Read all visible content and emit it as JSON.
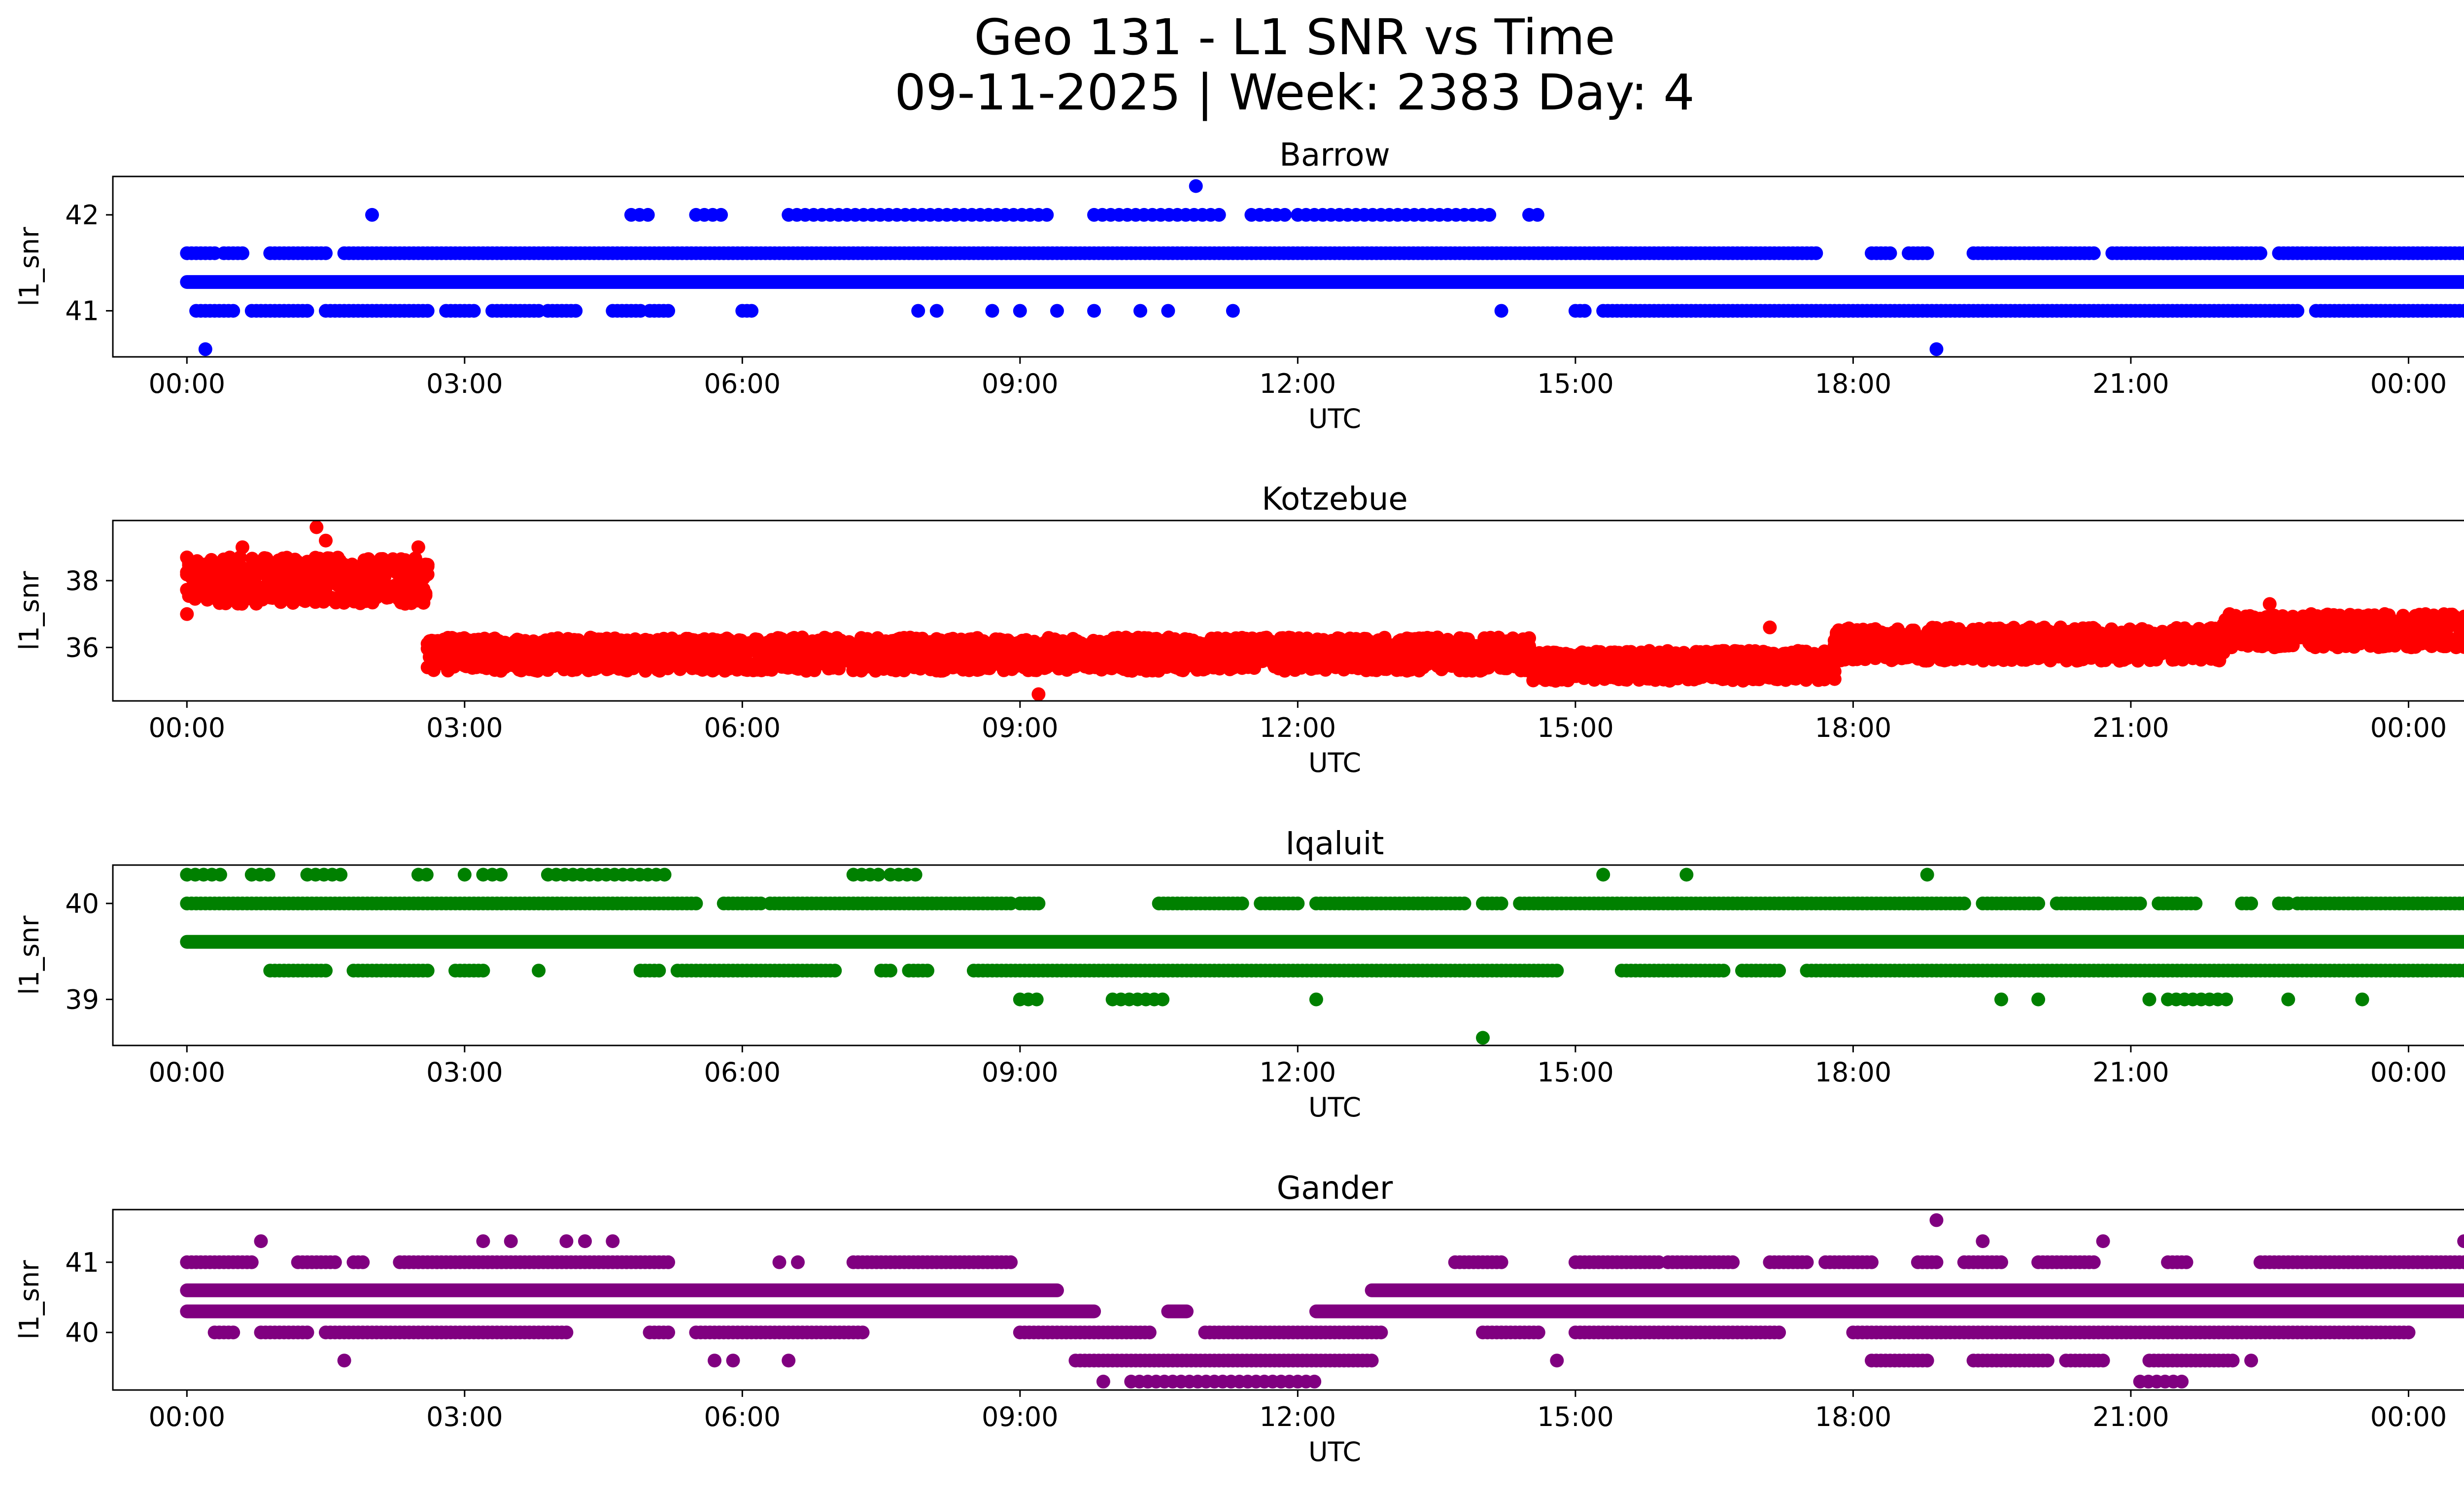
{
  "figure": {
    "title_line1": "Geo 131 - L1 SNR vs Time",
    "title_line2": "09-11-2025 | Week: 2383 Day: 4"
  },
  "chart_data": [
    {
      "type": "scatter",
      "title": "Barrow",
      "color": "#0000ff",
      "xlabel": "UTC",
      "ylabel": "l1_snr",
      "xlim_hours": [
        -0.8,
        25.6
      ],
      "ylim": [
        40.52,
        42.4
      ],
      "xtick_labels": [
        "00:00",
        "03:00",
        "06:00",
        "09:00",
        "12:00",
        "15:00",
        "18:00",
        "21:00",
        "00:00"
      ],
      "yticks": [
        41,
        42
      ],
      "ytick_labels": [
        "41",
        "42"
      ],
      "bands": [
        {
          "y": 41.3,
          "ranges": [
            [
              0,
              25
            ]
          ],
          "density": "continuous"
        },
        {
          "y": 41.6,
          "ranges": [
            [
              0,
              0.3
            ],
            [
              0.4,
              0.6
            ],
            [
              0.9,
              1.5
            ],
            [
              1.7,
              17.6
            ],
            [
              18.2,
              18.4
            ],
            [
              18.6,
              18.8
            ],
            [
              19.3,
              20.6
            ],
            [
              20.8,
              22.4
            ],
            [
              22.6,
              24.9
            ],
            [
              24.9,
              25
            ]
          ],
          "density": "dense"
        },
        {
          "y": 41.0,
          "ranges": [
            [
              0.1,
              0.5
            ],
            [
              0.7,
              1.3
            ],
            [
              1.5,
              2.6
            ],
            [
              2.8,
              3.1
            ],
            [
              3.3,
              3.8
            ],
            [
              3.9,
              4.2
            ],
            [
              4.6,
              4.9
            ],
            [
              5.0,
              5.2
            ],
            [
              6.0,
              6.1
            ],
            [
              15.0,
              15.1
            ],
            [
              15.3,
              22.8
            ],
            [
              23.0,
              25.0
            ]
          ],
          "density": "dense"
        },
        {
          "y": 42.0,
          "ranges": [
            [
              4.8,
              5.0
            ],
            [
              5.5,
              5.8
            ],
            [
              6.5,
              9.3
            ],
            [
              9.8,
              11.2
            ],
            [
              11.5,
              11.9
            ],
            [
              12.0,
              14.1
            ],
            [
              14.5,
              14.6
            ]
          ],
          "density": "sparse"
        }
      ],
      "isolated_points": [
        {
          "x": 0.2,
          "y": 40.6
        },
        {
          "x": 2.0,
          "y": 42.0
        },
        {
          "x": 10.9,
          "y": 42.3
        },
        {
          "x": 18.9,
          "y": 40.6
        },
        {
          "x": 8.1,
          "y": 41.0
        },
        {
          "x": 7.9,
          "y": 41.0
        },
        {
          "x": 8.7,
          "y": 41.0
        },
        {
          "x": 9.0,
          "y": 41.0
        },
        {
          "x": 9.4,
          "y": 41.0
        },
        {
          "x": 9.8,
          "y": 41.0
        },
        {
          "x": 10.3,
          "y": 41.0
        },
        {
          "x": 10.6,
          "y": 41.0
        },
        {
          "x": 11.3,
          "y": 41.0
        },
        {
          "x": 14.2,
          "y": 41.0
        }
      ]
    },
    {
      "type": "scatter",
      "title": "Kotzebue",
      "color": "#ff0000",
      "xlabel": "UTC",
      "ylabel": "l1_snr",
      "xlim_hours": [
        -0.8,
        25.6
      ],
      "ylim": [
        34.4,
        39.8
      ],
      "xtick_labels": [
        "00:00",
        "03:00",
        "06:00",
        "09:00",
        "12:00",
        "15:00",
        "18:00",
        "21:00",
        "00:00"
      ],
      "yticks": [
        36,
        38
      ],
      "ytick_labels": [
        "36",
        "38"
      ],
      "segments": [
        {
          "x0": 0.0,
          "x1": 2.6,
          "ymin": 37.3,
          "ymax": 38.7
        },
        {
          "x0": 2.6,
          "x1": 14.5,
          "ymin": 35.3,
          "ymax": 36.3
        },
        {
          "x0": 14.5,
          "x1": 17.8,
          "ymin": 35.0,
          "ymax": 35.9
        },
        {
          "x0": 17.8,
          "x1": 22.0,
          "ymin": 35.6,
          "ymax": 36.6
        },
        {
          "x0": 22.0,
          "x1": 25.0,
          "ymin": 36.0,
          "ymax": 37.0
        }
      ],
      "isolated_points": [
        {
          "x": 0.0,
          "y": 37.0
        },
        {
          "x": 0.6,
          "y": 39.0
        },
        {
          "x": 1.4,
          "y": 39.6
        },
        {
          "x": 1.5,
          "y": 39.2
        },
        {
          "x": 2.5,
          "y": 39.0
        },
        {
          "x": 9.2,
          "y": 34.6
        },
        {
          "x": 17.1,
          "y": 36.6
        },
        {
          "x": 22.5,
          "y": 37.3
        }
      ]
    },
    {
      "type": "scatter",
      "title": "Iqaluit",
      "color": "#008000",
      "xlabel": "UTC",
      "ylabel": "l1_snr",
      "xlim_hours": [
        -0.8,
        25.6
      ],
      "ylim": [
        38.52,
        40.4
      ],
      "xtick_labels": [
        "00:00",
        "03:00",
        "06:00",
        "09:00",
        "12:00",
        "15:00",
        "18:00",
        "21:00",
        "00:00"
      ],
      "yticks": [
        39,
        40
      ],
      "ytick_labels": [
        "39",
        "40"
      ],
      "bands": [
        {
          "y": 39.6,
          "ranges": [
            [
              0,
              25
            ]
          ],
          "density": "continuous"
        },
        {
          "y": 40.0,
          "ranges": [
            [
              0,
              5.5
            ],
            [
              5.8,
              6.2
            ],
            [
              6.3,
              8.9
            ],
            [
              9.0,
              9.2
            ],
            [
              10.5,
              11.4
            ],
            [
              11.6,
              12.0
            ],
            [
              12.2,
              13.8
            ],
            [
              14.0,
              14.2
            ],
            [
              14.4,
              19.2
            ],
            [
              19.4,
              20.0
            ],
            [
              20.2,
              21.1
            ],
            [
              21.3,
              21.7
            ],
            [
              22.2,
              22.3
            ],
            [
              22.6,
              22.7
            ],
            [
              22.8,
              25.0
            ]
          ],
          "density": "dense"
        },
        {
          "y": 39.3,
          "ranges": [
            [
              0.9,
              1.5
            ],
            [
              1.8,
              2.6
            ],
            [
              2.9,
              3.2
            ],
            [
              4.9,
              5.1
            ],
            [
              5.3,
              7.0
            ],
            [
              7.5,
              7.6
            ],
            [
              7.8,
              8.0
            ],
            [
              8.5,
              14.8
            ],
            [
              15.5,
              16.6
            ],
            [
              16.8,
              17.2
            ],
            [
              17.5,
              25.0
            ]
          ],
          "density": "dense"
        },
        {
          "y": 40.3,
          "ranges": [
            [
              0.0,
              0.4
            ],
            [
              0.7,
              0.9
            ],
            [
              1.3,
              1.7
            ],
            [
              2.5,
              2.6
            ],
            [
              3.3,
              3.4
            ],
            [
              3.9,
              5.2
            ],
            [
              7.2,
              7.5
            ],
            [
              7.6,
              7.9
            ]
          ],
          "density": "sparse"
        },
        {
          "y": 39.0,
          "ranges": [
            [
              9.0,
              9.2
            ],
            [
              10.0,
              10.6
            ],
            [
              21.4,
              22.1
            ]
          ],
          "density": "sparse"
        }
      ],
      "isolated_points": [
        {
          "x": 3.0,
          "y": 40.3
        },
        {
          "x": 3.2,
          "y": 40.3
        },
        {
          "x": 15.3,
          "y": 40.3
        },
        {
          "x": 16.2,
          "y": 40.3
        },
        {
          "x": 18.8,
          "y": 40.3
        },
        {
          "x": 12.2,
          "y": 39.0
        },
        {
          "x": 19.6,
          "y": 39.0
        },
        {
          "x": 20.0,
          "y": 39.0
        },
        {
          "x": 21.2,
          "y": 39.0
        },
        {
          "x": 22.7,
          "y": 39.0
        },
        {
          "x": 23.5,
          "y": 39.0
        },
        {
          "x": 3.8,
          "y": 39.3
        },
        {
          "x": 14.0,
          "y": 38.6
        }
      ]
    },
    {
      "type": "scatter",
      "title": "Gander",
      "color": "#800080",
      "xlabel": "UTC",
      "ylabel": "l1_snr",
      "xlim_hours": [
        -0.8,
        25.6
      ],
      "ylim": [
        39.18,
        41.75
      ],
      "xtick_labels": [
        "00:00",
        "03:00",
        "06:00",
        "09:00",
        "12:00",
        "15:00",
        "18:00",
        "21:00",
        "00:00"
      ],
      "yticks": [
        40,
        41
      ],
      "ytick_labels": [
        "40",
        "41"
      ],
      "bands": [
        {
          "y": 40.6,
          "ranges": [
            [
              0,
              9.4
            ],
            [
              12.8,
              25.0
            ]
          ],
          "density": "continuous"
        },
        {
          "y": 40.3,
          "ranges": [
            [
              0,
              9.8
            ],
            [
              10.6,
              10.8
            ],
            [
              12.2,
              25.0
            ]
          ],
          "density": "continuous"
        },
        {
          "y": 41.0,
          "ranges": [
            [
              0,
              0.7
            ],
            [
              1.2,
              1.6
            ],
            [
              1.8,
              1.9
            ],
            [
              2.3,
              5.2
            ],
            [
              7.2,
              8.9
            ],
            [
              13.7,
              14.2
            ],
            [
              15.0,
              15.9
            ],
            [
              16.0,
              16.7
            ],
            [
              17.1,
              17.5
            ],
            [
              17.7,
              18.2
            ],
            [
              18.7,
              18.9
            ],
            [
              19.2,
              19.6
            ],
            [
              20.0,
              20.6
            ],
            [
              21.4,
              21.6
            ],
            [
              22.4,
              25.0
            ]
          ],
          "density": "dense"
        },
        {
          "y": 40.0,
          "ranges": [
            [
              0.3,
              0.5
            ],
            [
              0.8,
              1.3
            ],
            [
              1.5,
              4.1
            ],
            [
              5.0,
              5.2
            ],
            [
              5.5,
              7.3
            ],
            [
              9.0,
              10.4
            ],
            [
              11.0,
              12.9
            ],
            [
              14.0,
              14.6
            ],
            [
              15.0,
              17.2
            ],
            [
              18.0,
              24.0
            ]
          ],
          "density": "dense"
        },
        {
          "y": 39.6,
          "ranges": [
            [
              9.6,
              12.8
            ],
            [
              18.2,
              18.8
            ],
            [
              19.3,
              20.1
            ],
            [
              20.3,
              20.7
            ],
            [
              21.2,
              22.1
            ]
          ],
          "density": "dense"
        },
        {
          "y": 39.3,
          "ranges": [
            [
              10.2,
              12.2
            ],
            [
              21.1,
              21.6
            ]
          ],
          "density": "sparse"
        }
      ],
      "isolated_points": [
        {
          "x": 0.8,
          "y": 41.3
        },
        {
          "x": 3.2,
          "y": 41.3
        },
        {
          "x": 3.5,
          "y": 41.3
        },
        {
          "x": 4.1,
          "y": 41.3
        },
        {
          "x": 4.3,
          "y": 41.3
        },
        {
          "x": 4.6,
          "y": 41.3
        },
        {
          "x": 1.7,
          "y": 39.6
        },
        {
          "x": 5.7,
          "y": 39.6
        },
        {
          "x": 5.9,
          "y": 39.6
        },
        {
          "x": 6.5,
          "y": 39.6
        },
        {
          "x": 14.8,
          "y": 39.6
        },
        {
          "x": 6.4,
          "y": 41.0
        },
        {
          "x": 6.6,
          "y": 41.0
        },
        {
          "x": 18.9,
          "y": 41.6
        },
        {
          "x": 19.4,
          "y": 41.3
        },
        {
          "x": 20.7,
          "y": 41.3
        },
        {
          "x": 24.6,
          "y": 41.3
        },
        {
          "x": 9.9,
          "y": 39.3
        },
        {
          "x": 22.3,
          "y": 39.6
        }
      ]
    }
  ]
}
